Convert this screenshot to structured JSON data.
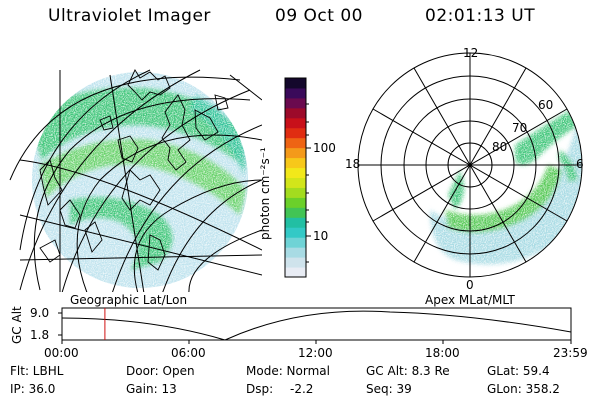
{
  "header": {
    "title": "Ultraviolet Imager",
    "date": "09 Oct 00",
    "time": "02:01:13 UT"
  },
  "colorbar": {
    "label": "photon cm⁻²s⁻¹",
    "ticks": [
      {
        "label": "100",
        "value": 100
      },
      {
        "label": "10",
        "value": 10
      }
    ],
    "colors": [
      "#e8ecf4",
      "#cfe3ec",
      "#a8dbe4",
      "#6fd3d6",
      "#33c9c6",
      "#22bfa3",
      "#42c455",
      "#6bd02a",
      "#a3dc1f",
      "#d2e51a",
      "#f2e81a",
      "#f7c81a",
      "#f49a1a",
      "#ee6414",
      "#e02d12",
      "#c8101a",
      "#9c0a2a",
      "#6a0a4e",
      "#3a0a5a",
      "#14082c"
    ]
  },
  "left_map": {
    "caption": "Geographic Lat/Lon"
  },
  "right_map": {
    "caption": "Apex MLat/MLT",
    "mlt_labels": {
      "top": "12",
      "left": "18",
      "right": "6",
      "bottom": "0"
    },
    "lat_labels": [
      "60",
      "70",
      "80"
    ]
  },
  "timeline": {
    "ylabel": "GC Alt",
    "y_ticks": [
      "9.0",
      "1.8"
    ],
    "x_ticks": [
      "00:00",
      "06:00",
      "12:00",
      "18:00",
      "23:59"
    ],
    "current_time_hours": 2.02,
    "marker_color": "#d01010"
  },
  "info": {
    "flt": "Flt: LBHL",
    "ip": "IP: 36.0",
    "door": "Door: Open",
    "gain": "Gain: 13",
    "mode": "Mode: Normal",
    "dsp_label": "Dsp:",
    "dsp_value": "-2.2",
    "gc_alt": "GC Alt: 8.3 Re",
    "seq": "Seq: 39",
    "glat": "GLat:  59.4",
    "glon": "GLon: 358.2"
  }
}
